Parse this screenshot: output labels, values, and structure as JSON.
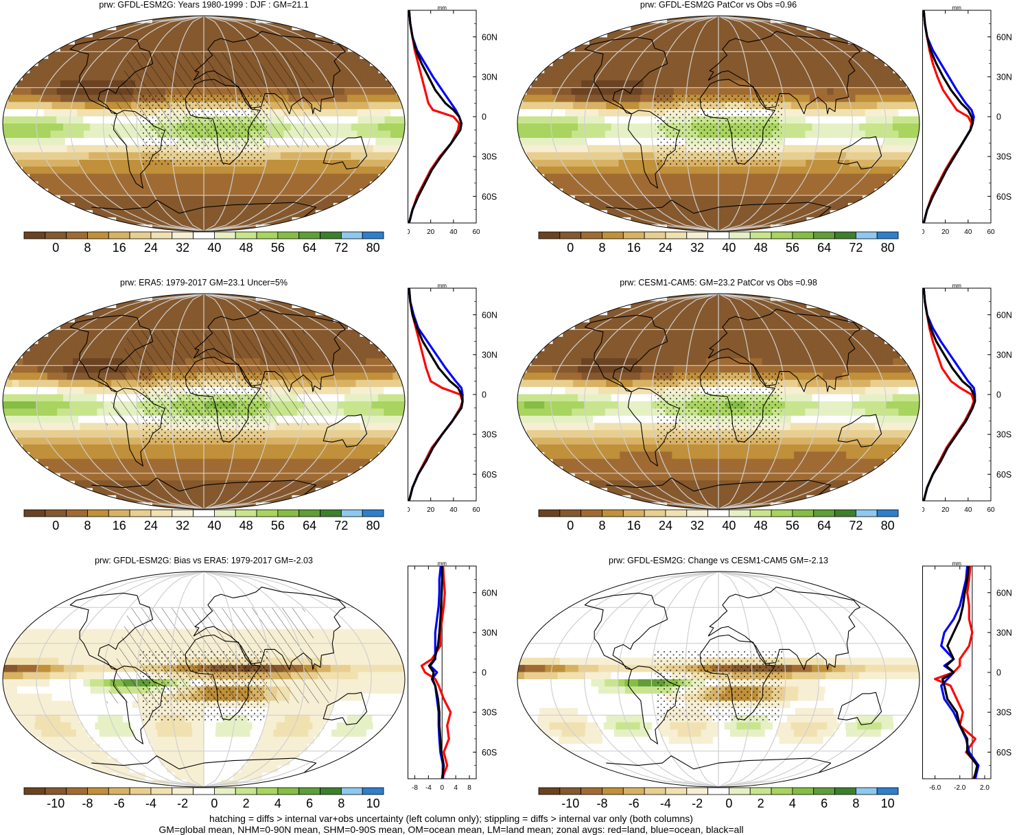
{
  "panels": [
    {
      "title": "prw: GFDL-ESM2G: Years 1980-1999 : DJF : GM=21.1",
      "palette": "abs",
      "hatch": true,
      "stipple": true,
      "colorbar_labels": [
        "0",
        "8",
        "16",
        "24",
        "32",
        "40",
        "48",
        "56",
        "64",
        "72",
        "80"
      ]
    },
    {
      "title": "prw: GFDL-ESM2G PatCor vs Obs =0.96",
      "palette": "abs",
      "hatch": false,
      "stipple": true,
      "colorbar_labels": [
        "0",
        "8",
        "16",
        "24",
        "32",
        "40",
        "48",
        "56",
        "64",
        "72",
        "80"
      ]
    },
    {
      "title": "prw: ERA5: 1979-2017 GM=23.1 Uncer=5%",
      "palette": "abs",
      "hatch": true,
      "stipple": true,
      "colorbar_labels": [
        "0",
        "8",
        "16",
        "24",
        "32",
        "40",
        "48",
        "56",
        "64",
        "72",
        "80"
      ]
    },
    {
      "title": "prw: CESM1-CAM5: GM=23.2 PatCor vs Obs =0.98",
      "palette": "abs",
      "hatch": false,
      "stipple": true,
      "colorbar_labels": [
        "0",
        "8",
        "16",
        "24",
        "32",
        "40",
        "48",
        "56",
        "64",
        "72",
        "80"
      ]
    },
    {
      "title": "prw: GFDL-ESM2G: Bias vs ERA5: 1979-2017 GM=-2.03",
      "palette": "diff",
      "hatch": true,
      "stipple": true,
      "colorbar_labels": [
        "-10",
        "-8",
        "-6",
        "-4",
        "-2",
        "0",
        "2",
        "4",
        "6",
        "8",
        "10"
      ]
    },
    {
      "title": "prw: GFDL-ESM2G: Change vs CESM1-CAM5 GM=-2.13",
      "palette": "diff",
      "hatch": false,
      "stipple": true,
      "colorbar_labels": [
        "-10",
        "-8",
        "-6",
        "-4",
        "-2",
        "0",
        "2",
        "4",
        "6",
        "8",
        "10"
      ]
    }
  ],
  "palettes": {
    "abs": [
      "#6b4322",
      "#85582d",
      "#a06b33",
      "#c0903a",
      "#d8b264",
      "#e8cf8f",
      "#f1e1b0",
      "#f7efd3",
      "#ffffff",
      "#e5f1c4",
      "#c8e58e",
      "#a8d45f",
      "#86bd45",
      "#5f9e39",
      "#3e7f2e",
      "#8ec8ef",
      "#2f7fca"
    ],
    "diff": [
      "#6b4322",
      "#85582d",
      "#a06b33",
      "#c0903a",
      "#d8b264",
      "#e8cf8f",
      "#f1e1b0",
      "#f7efd3",
      "#ffffff",
      "#e5f1c4",
      "#c8e58e",
      "#a8d45f",
      "#86bd45",
      "#5f9e39",
      "#3e7f2e",
      "#8ec8ef",
      "#2f7fca"
    ]
  },
  "chart_data": [
    {
      "type": "line",
      "panel": "prw: GFDL-ESM2G: Years 1980-1999 : DJF : GM=21.1",
      "xlabel": "mm",
      "xticks": [
        "0",
        "20",
        "40",
        "60"
      ],
      "xlim": [
        0,
        60
      ],
      "yticks": [
        "60N",
        "30N",
        "0",
        "30S",
        "60S"
      ],
      "ylim": [
        -80,
        80
      ],
      "lat": [
        -80,
        -70,
        -60,
        -50,
        -40,
        -30,
        -20,
        -10,
        -5,
        0,
        5,
        10,
        20,
        30,
        40,
        50,
        60,
        70,
        80
      ],
      "series": [
        {
          "name": "land",
          "color": "#ff0000",
          "values": [
            1,
            4,
            8,
            14,
            20,
            28,
            38,
            44,
            45,
            40,
            22,
            18,
            15,
            12,
            9,
            6,
            4,
            2,
            1
          ]
        },
        {
          "name": "ocean",
          "color": "#0000ff",
          "values": [
            1,
            4,
            9,
            15,
            21,
            29,
            38,
            46,
            47,
            45,
            42,
            38,
            30,
            22,
            15,
            8,
            4,
            2,
            1
          ]
        },
        {
          "name": "all",
          "color": "#000000",
          "values": [
            1,
            4,
            9,
            15,
            21,
            29,
            38,
            46,
            47,
            45,
            40,
            33,
            24,
            18,
            12,
            7,
            4,
            2,
            1
          ]
        }
      ]
    },
    {
      "type": "line",
      "panel": "prw: GFDL-ESM2G PatCor vs Obs =0.96",
      "xlabel": "mm",
      "xticks": [
        "0",
        "20",
        "40",
        "60"
      ],
      "xlim": [
        0,
        60
      ],
      "yticks": [
        "60N",
        "30N",
        "0",
        "30S",
        "60S"
      ],
      "ylim": [
        -80,
        80
      ],
      "lat": [
        -80,
        -70,
        -60,
        -50,
        -40,
        -30,
        -20,
        -10,
        -5,
        0,
        5,
        10,
        20,
        30,
        40,
        50,
        60,
        70,
        80
      ],
      "series": [
        {
          "name": "land",
          "color": "#ff0000",
          "values": [
            1,
            4,
            8,
            14,
            20,
            27,
            35,
            42,
            43,
            40,
            30,
            26,
            18,
            13,
            9,
            6,
            4,
            2,
            1
          ]
        },
        {
          "name": "ocean",
          "color": "#0000ff",
          "values": [
            1,
            4,
            9,
            15,
            21,
            28,
            35,
            42,
            44,
            45,
            43,
            38,
            30,
            23,
            16,
            9,
            4,
            2,
            1
          ]
        },
        {
          "name": "all",
          "color": "#000000",
          "values": [
            1,
            4,
            9,
            15,
            21,
            28,
            35,
            42,
            44,
            43,
            40,
            34,
            25,
            18,
            12,
            7,
            4,
            2,
            1
          ]
        }
      ]
    },
    {
      "type": "line",
      "panel": "prw: ERA5: 1979-2017 GM=23.1 Uncer=5%",
      "xlabel": "mm",
      "xticks": [
        "0",
        "20",
        "40",
        "60"
      ],
      "xlim": [
        0,
        60
      ],
      "yticks": [
        "60N",
        "30N",
        "0",
        "30S",
        "60S"
      ],
      "ylim": [
        -80,
        80
      ],
      "lat": [
        -80,
        -70,
        -60,
        -50,
        -40,
        -30,
        -20,
        -10,
        -5,
        0,
        5,
        10,
        20,
        30,
        40,
        50,
        60,
        70,
        80
      ],
      "series": [
        {
          "name": "land",
          "color": "#ff0000",
          "values": [
            1,
            4,
            9,
            15,
            21,
            30,
            39,
            46,
            48,
            46,
            30,
            20,
            16,
            13,
            10,
            7,
            4,
            2,
            1
          ]
        },
        {
          "name": "ocean",
          "color": "#0000ff",
          "values": [
            1,
            4,
            9,
            16,
            22,
            30,
            39,
            47,
            48,
            48,
            47,
            42,
            33,
            25,
            17,
            9,
            5,
            2,
            1
          ]
        },
        {
          "name": "all",
          "color": "#000000",
          "values": [
            1,
            4,
            9,
            16,
            22,
            30,
            39,
            47,
            48,
            47,
            44,
            37,
            27,
            20,
            13,
            8,
            4,
            2,
            1
          ]
        }
      ]
    },
    {
      "type": "line",
      "panel": "prw: CESM1-CAM5: GM=23.2 PatCor vs Obs =0.98",
      "xlabel": "mm",
      "xticks": [
        "0",
        "20",
        "40",
        "60"
      ],
      "xlim": [
        0,
        60
      ],
      "yticks": [
        "60N",
        "30N",
        "0",
        "30S",
        "60S"
      ],
      "ylim": [
        -80,
        80
      ],
      "lat": [
        -80,
        -70,
        -60,
        -50,
        -40,
        -30,
        -20,
        -10,
        -5,
        0,
        5,
        10,
        20,
        30,
        40,
        50,
        60,
        70,
        80
      ],
      "series": [
        {
          "name": "land",
          "color": "#ff0000",
          "values": [
            1,
            4,
            9,
            15,
            21,
            29,
            37,
            43,
            45,
            43,
            33,
            25,
            17,
            13,
            9,
            6,
            4,
            2,
            1
          ]
        },
        {
          "name": "ocean",
          "color": "#0000ff",
          "values": [
            1,
            4,
            9,
            16,
            22,
            30,
            38,
            44,
            46,
            46,
            45,
            40,
            32,
            24,
            16,
            9,
            4,
            2,
            1
          ]
        },
        {
          "name": "all",
          "color": "#000000",
          "values": [
            1,
            4,
            9,
            16,
            22,
            30,
            38,
            44,
            46,
            45,
            42,
            35,
            26,
            19,
            12,
            7,
            4,
            2,
            1
          ]
        }
      ]
    },
    {
      "type": "line",
      "panel": "prw: GFDL-ESM2G: Bias vs ERA5: 1979-2017 GM=-2.03",
      "xlabel": "mm",
      "xticks": [
        "-8",
        "-4",
        "0",
        "4",
        "8"
      ],
      "xlim": [
        -10,
        10
      ],
      "yticks": [
        "60N",
        "30N",
        "0",
        "30S",
        "60S"
      ],
      "ylim": [
        -80,
        80
      ],
      "lat": [
        -80,
        -70,
        -60,
        -50,
        -40,
        -30,
        -20,
        -10,
        -5,
        0,
        5,
        10,
        20,
        30,
        40,
        50,
        60,
        70,
        80
      ],
      "series": [
        {
          "name": "land",
          "color": "#ff0000",
          "values": [
            0,
            1.5,
            0.5,
            2,
            1.5,
            2.5,
            0.5,
            -1,
            -2,
            -5,
            -6,
            -3,
            -0.5,
            -0.5,
            0,
            0.5,
            0.8,
            0.5,
            0.3
          ]
        },
        {
          "name": "ocean",
          "color": "#0000ff",
          "values": [
            0.3,
            0.3,
            -0.5,
            -0.8,
            -1,
            -1,
            -1.5,
            -2,
            -3,
            -1.5,
            -3.5,
            -2,
            -2,
            -2,
            -1.5,
            -1,
            -0.8,
            -0.8,
            -0.4
          ]
        },
        {
          "name": "all",
          "color": "#000000",
          "values": [
            0,
            0.5,
            -0.2,
            -0.5,
            -0.8,
            -0.8,
            -1.2,
            -2,
            -2.8,
            -2.5,
            -3.8,
            -2.2,
            -1.2,
            -0.8,
            -0.5,
            -0.3,
            -0.1,
            0,
            0
          ]
        }
      ]
    },
    {
      "type": "line",
      "panel": "prw: GFDL-ESM2G: Change vs CESM1-CAM5 GM=-2.13",
      "xlabel": "mm",
      "xticks": [
        "-6.0",
        "-2.0",
        "2.0"
      ],
      "xlim": [
        -8,
        3
      ],
      "yticks": [
        "60N",
        "30N",
        "0",
        "30S",
        "60S"
      ],
      "ylim": [
        -80,
        80
      ],
      "lat": [
        -80,
        -70,
        -60,
        -50,
        -40,
        -30,
        -20,
        -10,
        -5,
        0,
        5,
        10,
        20,
        30,
        40,
        50,
        60,
        70,
        80
      ],
      "series": [
        {
          "name": "land",
          "color": "#ff0000",
          "values": [
            0.2,
            1,
            -1,
            0.5,
            -2,
            -1.5,
            -2.5,
            -3.5,
            -6,
            -3,
            -2,
            -2,
            -0.5,
            0,
            -0.5,
            -0.5,
            -0.8,
            -0.5,
            -0.3
          ]
        },
        {
          "name": "ocean",
          "color": "#0000ff",
          "values": [
            0.5,
            1,
            -0.5,
            -1,
            -2,
            -3,
            -4.5,
            -5,
            -4,
            -3,
            -4.5,
            -3,
            -5,
            -4.5,
            -3,
            -2,
            -1.5,
            -1,
            -0.8
          ]
        },
        {
          "name": "all",
          "color": "#000000",
          "values": [
            0.3,
            0.8,
            -0.8,
            -0.8,
            -2,
            -2.5,
            -4,
            -4.5,
            -4.8,
            -3,
            -4.2,
            -3,
            -4,
            -3,
            -2,
            -1.5,
            -1.2,
            -0.8,
            -0.6
          ]
        }
      ]
    }
  ],
  "footer": {
    "line1": "hatching = diffs > internal var+obs uncertainty (left column only); stippling = diffs > internal var only (both columns)",
    "line2": "GM=global mean, NHM=0-90N mean, SHM=0-90S mean, OM=ocean mean, LM=land mean; zonal avgs: red=land, blue=ocean, black=all"
  }
}
